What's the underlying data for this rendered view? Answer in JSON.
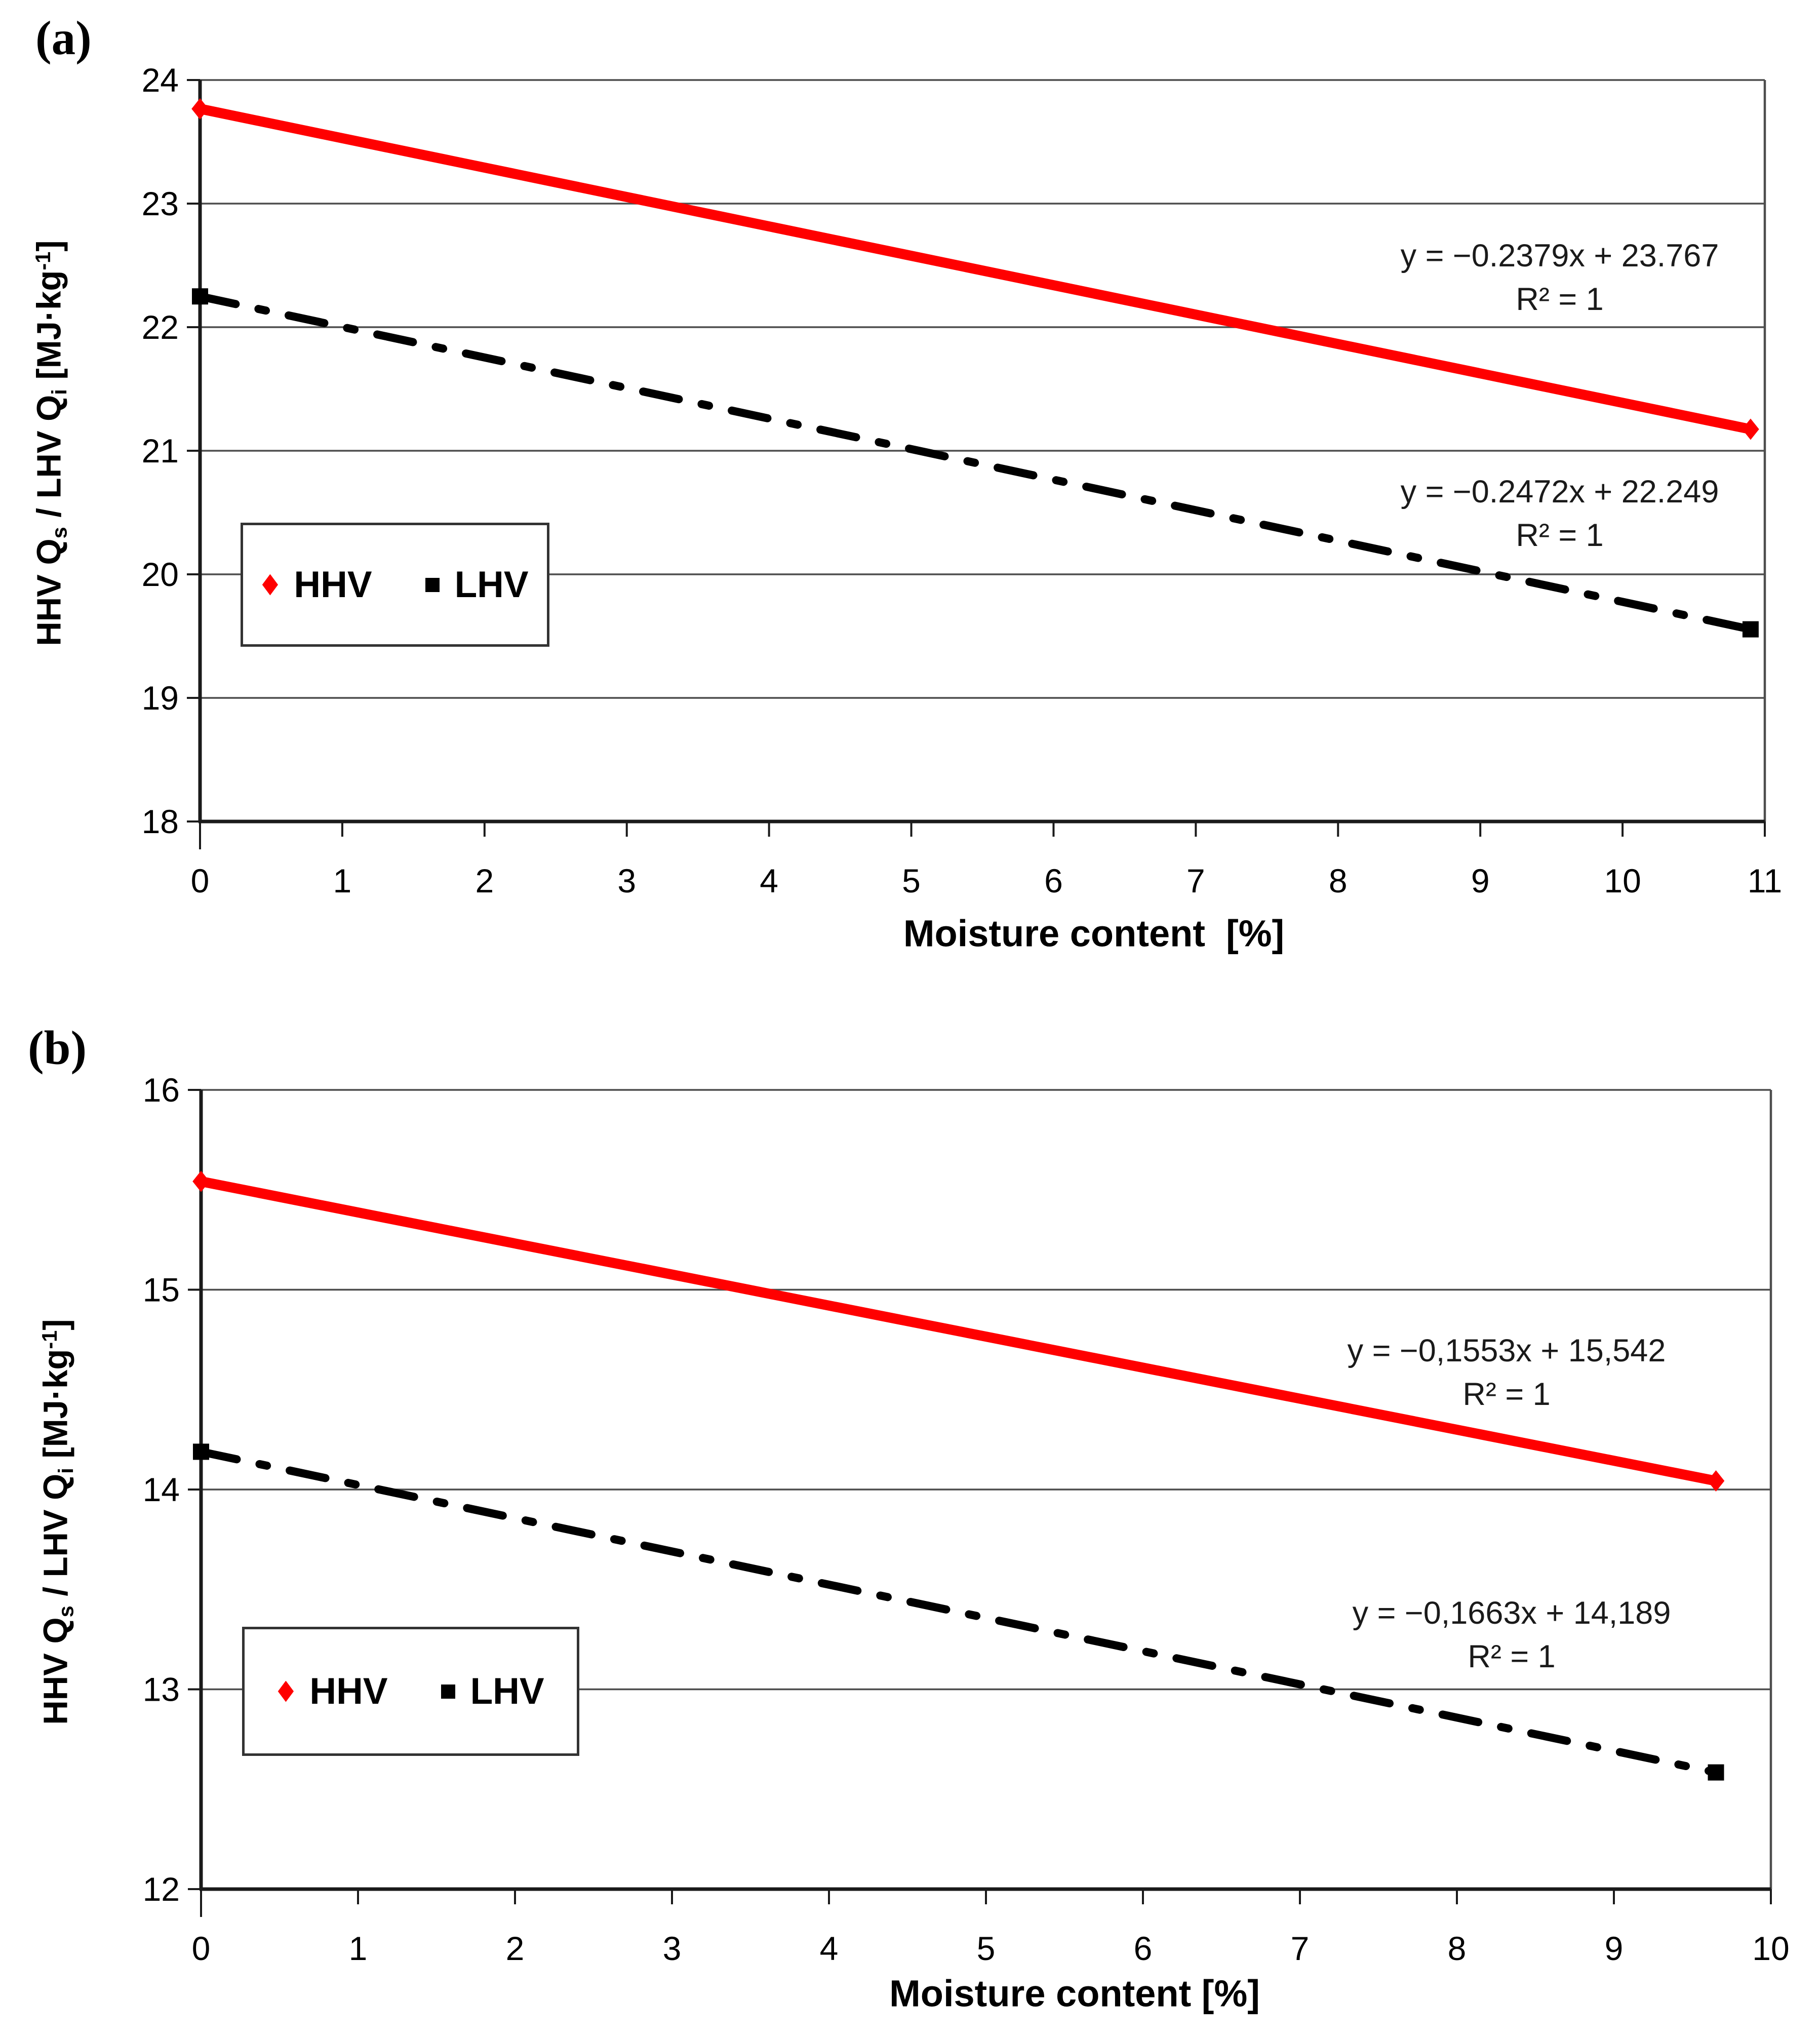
{
  "page": {
    "background": "#ffffff"
  },
  "colors": {
    "hhv_line": "#ff0000",
    "lhv_line": "#000000",
    "gridline": "#4d4d4d",
    "axis": "#1a1a1a"
  },
  "chart_data": [
    {
      "panel_label": "(a)",
      "type": "line",
      "x_axis": {
        "label": "Moisture content  [%]",
        "min": 0,
        "max": 11,
        "ticks": [
          0,
          1,
          2,
          3,
          4,
          5,
          6,
          7,
          8,
          9,
          10,
          11
        ]
      },
      "y_axis": {
        "label_parts": [
          [
            "HHV Q"
          ],
          [
            "s",
            "sub"
          ],
          [
            " / LHV Q"
          ],
          [
            "i",
            "sub"
          ],
          [
            " [MJ·kg"
          ],
          [
            "-1",
            "sup"
          ],
          [
            "]"
          ]
        ],
        "unit": "MJ·kg-1",
        "min": 18,
        "max": 24,
        "ticks": [
          18,
          19,
          20,
          21,
          22,
          23,
          24
        ]
      },
      "series": [
        {
          "name": "HHV",
          "color": "#ff0000",
          "line_style": "solid",
          "marker": "diamond",
          "slope": -0.2379,
          "intercept": 23.767,
          "points": [
            [
              0,
              23.767
            ],
            [
              10.9,
              21.174
            ]
          ],
          "equation": "y = −0.2379x + 23.767",
          "r2": "R² = 1"
        },
        {
          "name": "LHV",
          "color": "#000000",
          "line_style": "dash-dot",
          "marker": "square",
          "slope": -0.2472,
          "intercept": 22.249,
          "points": [
            [
              0,
              22.249
            ],
            [
              10.9,
              19.555
            ]
          ],
          "equation": "y = −0.2472x + 22.249",
          "r2": "R² = 1"
        }
      ],
      "legend": [
        "HHV",
        "LHV"
      ]
    },
    {
      "panel_label": "(b)",
      "type": "line",
      "x_axis": {
        "label": "Moisture content [%]",
        "min": 0,
        "max": 10,
        "ticks": [
          0,
          1,
          2,
          3,
          4,
          5,
          6,
          7,
          8,
          9,
          10
        ]
      },
      "y_axis": {
        "label_parts": [
          [
            "HHV Q"
          ],
          [
            "s",
            "sub"
          ],
          [
            " / LHV Q"
          ],
          [
            "i",
            "sub"
          ],
          [
            " [MJ·kg"
          ],
          [
            "-1",
            "sup"
          ],
          [
            "]"
          ]
        ],
        "unit": "MJ·kg-1",
        "min": 12,
        "max": 16,
        "ticks": [
          12,
          13,
          14,
          15,
          16
        ]
      },
      "series": [
        {
          "name": "HHV",
          "color": "#ff0000",
          "line_style": "solid",
          "marker": "diamond",
          "slope": -0.1553,
          "intercept": 15.542,
          "points": [
            [
              0,
              15.542
            ],
            [
              9.65,
              14.043
            ]
          ],
          "equation": "y = −0,1553x + 15,542",
          "r2": "R² = 1"
        },
        {
          "name": "LHV",
          "color": "#000000",
          "line_style": "dash-dot",
          "marker": "square",
          "slope": -0.1663,
          "intercept": 14.189,
          "points": [
            [
              0,
              14.189
            ],
            [
              9.65,
              12.584
            ]
          ],
          "equation": "y = −0,1663x + 14,189",
          "r2": "R² = 1"
        }
      ],
      "legend": [
        "HHV",
        "LHV"
      ]
    }
  ]
}
